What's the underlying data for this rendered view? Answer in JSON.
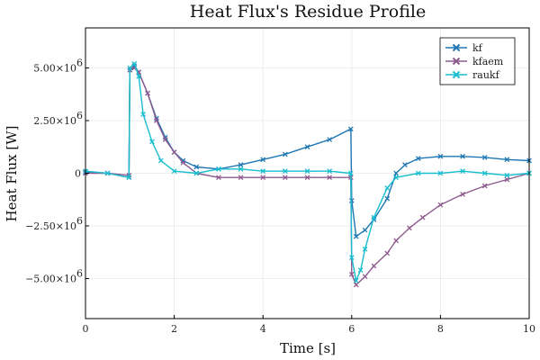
{
  "chart_data": {
    "type": "line",
    "title": "Heat Flux's Residue Profile",
    "xlabel": "Time [s]",
    "ylabel": "Heat Flux [W]",
    "xlim": [
      0,
      10
    ],
    "ylim": [
      -6900000,
      6900000
    ],
    "grid": true,
    "legend_position": "top-right",
    "x_ticks": [
      0,
      2,
      4,
      6,
      8,
      10
    ],
    "x_tick_labels": [
      "0",
      "2",
      "4",
      "6",
      "8",
      "10"
    ],
    "y_ticks": [
      -5000000,
      -2500000,
      0,
      2500000,
      5000000
    ],
    "y_tick_mantissas": [
      "−5.00×10",
      "−2.50×10",
      "0",
      "2.50×10",
      "5.00×10"
    ],
    "y_tick_exponents": [
      "6",
      "6",
      "",
      "6",
      "6"
    ],
    "series": [
      {
        "name": "kf",
        "color": "#1f77b4",
        "x": [
          0,
          0.5,
          0.98,
          1.0,
          1.1,
          1.2,
          1.4,
          1.6,
          1.8,
          2.0,
          2.2,
          2.5,
          3.0,
          3.5,
          4.0,
          4.5,
          5.0,
          5.5,
          5.98,
          6.0,
          6.1,
          6.3,
          6.5,
          6.8,
          7.0,
          7.2,
          7.5,
          8.0,
          8.5,
          9.0,
          9.5,
          10.0
        ],
        "y": [
          50000,
          0,
          -200000,
          4900000,
          5100000,
          4800000,
          3800000,
          2600000,
          1700000,
          1000000,
          600000,
          300000,
          200000,
          400000,
          650000,
          900000,
          1250000,
          1600000,
          2100000,
          -1300000,
          -3000000,
          -2700000,
          -2200000,
          -1200000,
          0,
          400000,
          700000,
          800000,
          800000,
          750000,
          650000,
          600000
        ]
      },
      {
        "name": "kfaem",
        "color": "#8e5a8e",
        "x": [
          0,
          0.5,
          0.98,
          1.0,
          1.1,
          1.2,
          1.4,
          1.6,
          1.8,
          2.0,
          2.2,
          2.5,
          3.0,
          3.5,
          4.0,
          4.5,
          5.0,
          5.5,
          5.98,
          6.0,
          6.1,
          6.3,
          6.5,
          6.8,
          7.0,
          7.3,
          7.6,
          8.0,
          8.5,
          9.0,
          9.5,
          10.0
        ],
        "y": [
          0,
          0,
          -100000,
          4900000,
          5000000,
          4800000,
          3800000,
          2500000,
          1600000,
          1000000,
          500000,
          0,
          -200000,
          -200000,
          -200000,
          -200000,
          -200000,
          -200000,
          -200000,
          -4800000,
          -5300000,
          -4900000,
          -4400000,
          -3800000,
          -3200000,
          -2600000,
          -2100000,
          -1500000,
          -1000000,
          -600000,
          -300000,
          0
        ]
      },
      {
        "name": "raukf",
        "color": "#17becf",
        "x": [
          0,
          0.5,
          0.98,
          1.0,
          1.1,
          1.2,
          1.3,
          1.5,
          1.7,
          2.0,
          2.5,
          3.0,
          3.5,
          4.0,
          4.5,
          5.0,
          5.5,
          5.98,
          6.0,
          6.1,
          6.2,
          6.3,
          6.5,
          6.8,
          7.0,
          7.5,
          8.0,
          8.5,
          9.0,
          9.5,
          10.0
        ],
        "y": [
          100000,
          0,
          -200000,
          5000000,
          5200000,
          4600000,
          2800000,
          1500000,
          600000,
          100000,
          0,
          200000,
          200000,
          100000,
          100000,
          100000,
          100000,
          0,
          -4000000,
          -5100000,
          -4600000,
          -3600000,
          -2100000,
          -700000,
          -200000,
          0,
          0,
          100000,
          0,
          -100000,
          0
        ]
      }
    ]
  }
}
